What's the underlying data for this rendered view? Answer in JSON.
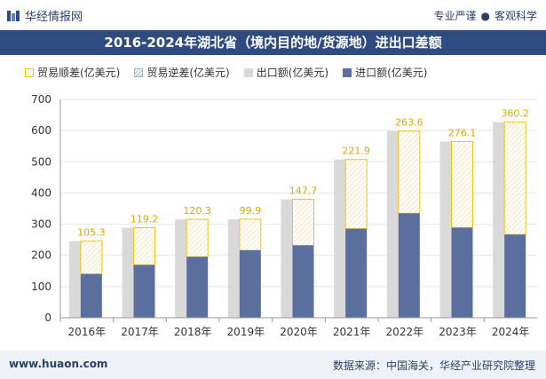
{
  "header": {
    "brand": "华经情报网",
    "tagline_left": "专业严谨",
    "tagline_dot": "●",
    "tagline_right": "客观科学"
  },
  "footer": {
    "site": "www.huaon.com",
    "source": "数据来源：中国海关，华经产业研究院整理"
  },
  "colors": {
    "export": "#d9d9d9",
    "import": "#5b6f9e",
    "surplus_outline": "#f6c10f",
    "deficit_hatch": "#9db8c5",
    "title_bg": "#2e4b82"
  },
  "chart_data": {
    "type": "bar",
    "title": "2016-2024年湖北省（境内目的地/货源地）进出口差额",
    "categories": [
      "2016年",
      "2017年",
      "2018年",
      "2019年",
      "2020年",
      "2021年",
      "2022年",
      "2023年",
      "2024年"
    ],
    "legend": [
      "贸易顺差(亿美元)",
      "贸易逆差(亿美元)",
      "出口额(亿美元)",
      "进口额(亿美元)"
    ],
    "series": [
      {
        "name": "出口额(亿美元)",
        "values": [
          245.6,
          288.6,
          315.7,
          316.2,
          379.7,
          507.4,
          598.4,
          564.9,
          627.0
        ]
      },
      {
        "name": "进口额(亿美元)",
        "values": [
          140.3,
          169.4,
          195.4,
          216.3,
          232.0,
          285.5,
          334.8,
          288.8,
          266.8
        ]
      },
      {
        "name": "贸易顺差(亿美元)",
        "values": [
          105.3,
          119.2,
          120.3,
          99.9,
          147.7,
          221.9,
          263.6,
          276.1,
          360.2
        ]
      }
    ],
    "data_labels": [
      "105.3",
      "119.2",
      "120.3",
      "99.9",
      "147.7",
      "221.9",
      "263.6",
      "276.1",
      "360.2"
    ],
    "yticks": [
      0,
      100,
      200,
      300,
      400,
      500,
      600,
      700
    ],
    "ylim": [
      0,
      700
    ],
    "xlabel": "",
    "ylabel": "",
    "legend_position": "top"
  }
}
